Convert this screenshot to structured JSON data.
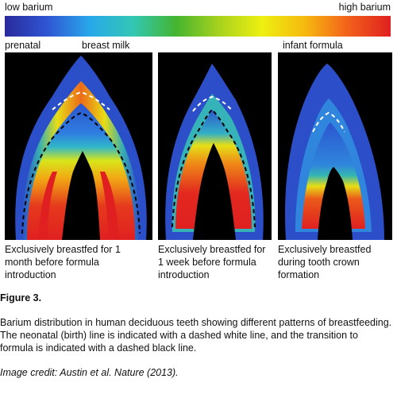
{
  "scale": {
    "low_label": "low barium",
    "high_label": "high barium",
    "gradient_colors": [
      "#2a2a9c",
      "#2f56d4",
      "#28a9ea",
      "#33c7b3",
      "#44b52f",
      "#a8d21e",
      "#eef011",
      "#f6b90f",
      "#f2611a",
      "#e02020"
    ]
  },
  "sections": {
    "prenatal": "prenatal",
    "breast_milk": "breast milk",
    "infant_formula": "infant formula"
  },
  "panels": [
    {
      "caption": "Exclusively breastfed for 1\nmonth before formula\nintroduction"
    },
    {
      "caption": "Exclusively breastfed for\n1 week before formula\nintroduction"
    },
    {
      "caption": "Exclusively breastfed\nduring tooth crown\nformation"
    }
  ],
  "figure": {
    "label": "Figure 3.",
    "description": "Barium distribution in human deciduous teeth showing different patterns of breastfeeding. The neonatal (birth) line is indicated with a dashed white line, and the transition to formula is indicated with a dashed black line.",
    "credit": "Image credit: Austin et al. Nature (2013)."
  }
}
